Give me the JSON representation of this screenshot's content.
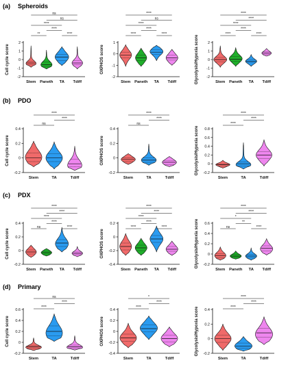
{
  "colors": {
    "Stem": "#f06a6a",
    "Paneth": "#1fae2a",
    "TA": "#2a9bf0",
    "Tdiff": "#ee86ee",
    "stroke": "#111111",
    "text": "#111111"
  },
  "sections": [
    {
      "label": "(a)",
      "title": "Spheroids"
    },
    {
      "label": "(b)",
      "title": "PDO"
    },
    {
      "label": "(c)",
      "title": "PDX"
    },
    {
      "label": "(d)",
      "title": "Primary"
    }
  ],
  "chart_data": [
    {
      "id": "a1",
      "type": "violin",
      "section": 0,
      "ylabel": "Cell cycle score",
      "ylim": [
        -2,
        2
      ],
      "yticks": [
        -2,
        -1,
        0,
        1,
        2
      ],
      "categories": [
        "Stem",
        "Paneth",
        "TA",
        "Tdiff"
      ],
      "series": [
        {
          "name": "Stem",
          "median": -0.4,
          "q1": -0.6,
          "q3": -0.2,
          "min": -0.9,
          "max": 1.6,
          "mode": -0.45,
          "spread": 0.25
        },
        {
          "name": "Paneth",
          "median": -0.6,
          "q1": -0.8,
          "q3": -0.3,
          "min": -1.1,
          "max": 1.1,
          "mode": -0.6,
          "spread": 0.35
        },
        {
          "name": "TA",
          "median": 0.3,
          "q1": -0.1,
          "q3": 0.6,
          "min": -0.7,
          "max": 1.5,
          "mode": 0.3,
          "spread": 0.55
        },
        {
          "name": "Tdiff",
          "median": -0.4,
          "q1": -0.6,
          "q3": -0.1,
          "min": -1.1,
          "max": 1.5,
          "mode": -0.4,
          "spread": 0.3
        }
      ],
      "sig": [
        {
          "from": 0,
          "to": 1,
          "text": "**",
          "level": 0
        },
        {
          "from": 1,
          "to": 2,
          "text": "****",
          "level": 1
        },
        {
          "from": 2,
          "to": 3,
          "text": "****",
          "level": 0
        },
        {
          "from": 0,
          "to": 2,
          "text": "****",
          "level": 2
        },
        {
          "from": 1,
          "to": 3,
          "text": "ns",
          "level": 3
        },
        {
          "from": 0,
          "to": 3,
          "text": "ns",
          "level": 4
        }
      ]
    },
    {
      "id": "a2",
      "type": "violin",
      "section": 0,
      "ylabel": "OXPHOS score",
      "ylim": [
        -2,
        1
      ],
      "yticks": [
        -2,
        -1,
        0,
        1
      ],
      "categories": [
        "Stem",
        "Paneth",
        "TA",
        "Tdiff"
      ],
      "series": [
        {
          "name": "Stem",
          "median": -0.1,
          "q1": -0.35,
          "q3": 0.15,
          "min": -1.1,
          "max": 0.8,
          "mode": -0.1,
          "spread": 0.4
        },
        {
          "name": "Paneth",
          "median": -0.35,
          "q1": -0.6,
          "q3": -0.1,
          "min": -1.1,
          "max": 0.5,
          "mode": -0.35,
          "spread": 0.35
        },
        {
          "name": "TA",
          "median": 0.15,
          "q1": -0.05,
          "q3": 0.35,
          "min": -0.6,
          "max": 0.75,
          "mode": 0.2,
          "spread": 0.5
        },
        {
          "name": "Tdiff",
          "median": -0.35,
          "q1": -0.55,
          "q3": -0.1,
          "min": -1.0,
          "max": 0.4,
          "mode": -0.35,
          "spread": 0.4
        }
      ],
      "sig": [
        {
          "from": 0,
          "to": 1,
          "text": "****",
          "level": 0
        },
        {
          "from": 1,
          "to": 2,
          "text": "****",
          "level": 1
        },
        {
          "from": 2,
          "to": 3,
          "text": "****",
          "level": 0
        },
        {
          "from": 0,
          "to": 2,
          "text": "****",
          "level": 2
        },
        {
          "from": 1,
          "to": 3,
          "text": "ns",
          "level": 3
        },
        {
          "from": 0,
          "to": 3,
          "text": "****",
          "level": 4
        }
      ]
    },
    {
      "id": "a3",
      "type": "violin",
      "section": 0,
      "ylabel": "Glycolysis/Hypoxia score",
      "ylim": [
        -2,
        2
      ],
      "yticks": [
        -2,
        -1,
        0,
        1,
        2
      ],
      "categories": [
        "Stem",
        "Paneth",
        "TA",
        "Tdiff"
      ],
      "series": [
        {
          "name": "Stem",
          "median": 0.0,
          "q1": -0.25,
          "q3": 0.25,
          "min": -0.9,
          "max": 1.6,
          "mode": 0.0,
          "spread": 0.5
        },
        {
          "name": "Paneth",
          "median": 0.05,
          "q1": -0.2,
          "q3": 0.35,
          "min": -0.8,
          "max": 1.4,
          "mode": 0.1,
          "spread": 0.5
        },
        {
          "name": "TA",
          "median": -0.2,
          "q1": -0.35,
          "q3": 0.0,
          "min": -0.8,
          "max": 0.6,
          "mode": -0.2,
          "spread": 0.35
        },
        {
          "name": "Tdiff",
          "median": 0.75,
          "q1": 0.6,
          "q3": 0.9,
          "min": 0.4,
          "max": 1.3,
          "mode": 0.75,
          "spread": 0.2
        }
      ],
      "sig": [
        {
          "from": 0,
          "to": 1,
          "text": "****",
          "level": 0
        },
        {
          "from": 1,
          "to": 2,
          "text": "****",
          "level": 1
        },
        {
          "from": 2,
          "to": 3,
          "text": "****",
          "level": 0
        },
        {
          "from": 0,
          "to": 2,
          "text": "****",
          "level": 2
        },
        {
          "from": 1,
          "to": 3,
          "text": "****",
          "level": 3
        },
        {
          "from": 0,
          "to": 3,
          "text": "****",
          "level": 4
        }
      ]
    },
    {
      "id": "b1",
      "type": "violin",
      "section": 1,
      "ylabel": "Cell cycle score",
      "ylim": [
        -0.2,
        0.4
      ],
      "yticks": [
        -0.2,
        0.0,
        0.2,
        0.4
      ],
      "categories": [
        "Stem",
        "TA",
        "Tdiff"
      ],
      "series": [
        {
          "name": "Stem",
          "median": 0.0,
          "q1": -0.05,
          "q3": 0.07,
          "min": -0.12,
          "max": 0.23,
          "mode": 0.01,
          "spread": 0.45
        },
        {
          "name": "TA",
          "median": 0.0,
          "q1": -0.05,
          "q3": 0.06,
          "min": -0.15,
          "max": 0.22,
          "mode": 0.0,
          "spread": 0.45
        },
        {
          "name": "Tdiff",
          "median": -0.08,
          "q1": -0.12,
          "q3": -0.02,
          "min": -0.17,
          "max": 0.16,
          "mode": -0.1,
          "spread": 0.3
        }
      ],
      "sig": [
        {
          "from": 0,
          "to": 1,
          "text": "ns",
          "level": 0
        },
        {
          "from": 1,
          "to": 2,
          "text": "****",
          "level": 1
        },
        {
          "from": 0,
          "to": 2,
          "text": "****",
          "level": 2
        }
      ]
    },
    {
      "id": "b2",
      "type": "violin",
      "section": 1,
      "ylabel": "OXPHOS score",
      "ylim": [
        -0.2,
        0.4
      ],
      "yticks": [
        -0.2,
        0.0,
        0.2,
        0.4
      ],
      "categories": [
        "Stem",
        "TA",
        "Tdiff"
      ],
      "series": [
        {
          "name": "Stem",
          "median": -0.02,
          "q1": -0.05,
          "q3": 0.0,
          "min": -0.09,
          "max": 0.06,
          "mode": -0.02,
          "spread": 0.3
        },
        {
          "name": "TA",
          "median": -0.03,
          "q1": -0.06,
          "q3": 0.0,
          "min": -0.1,
          "max": 0.19,
          "mode": -0.03,
          "spread": 0.35
        },
        {
          "name": "Tdiff",
          "median": -0.06,
          "q1": -0.09,
          "q3": -0.04,
          "min": -0.12,
          "max": 0.02,
          "mode": -0.06,
          "spread": 0.3
        }
      ],
      "sig": [
        {
          "from": 0,
          "to": 1,
          "text": "ns",
          "level": 0
        },
        {
          "from": 1,
          "to": 2,
          "text": "****",
          "level": 1
        },
        {
          "from": 0,
          "to": 2,
          "text": "****",
          "level": 2
        }
      ]
    },
    {
      "id": "b3",
      "type": "violin",
      "section": 1,
      "ylabel": "Glycolysis/Hypoxia score",
      "ylim": [
        -0.2,
        0.8
      ],
      "yticks": [
        -0.2,
        0.0,
        0.2,
        0.4,
        0.6,
        0.8
      ],
      "categories": [
        "Stem",
        "TA",
        "Tdiff"
      ],
      "series": [
        {
          "name": "Stem",
          "median": -0.02,
          "q1": -0.05,
          "q3": 0.0,
          "min": -0.1,
          "max": 0.08,
          "mode": -0.02,
          "spread": 0.3
        },
        {
          "name": "TA",
          "median": 0.0,
          "q1": -0.05,
          "q3": 0.04,
          "min": -0.12,
          "max": 0.48,
          "mode": -0.02,
          "spread": 0.35
        },
        {
          "name": "Tdiff",
          "median": 0.2,
          "q1": 0.12,
          "q3": 0.28,
          "min": -0.05,
          "max": 0.55,
          "mode": 0.2,
          "spread": 0.4
        }
      ],
      "sig": [
        {
          "from": 0,
          "to": 1,
          "text": "****",
          "level": 0
        },
        {
          "from": 1,
          "to": 2,
          "text": "****",
          "level": 1
        },
        {
          "from": 0,
          "to": 2,
          "text": "****",
          "level": 2
        }
      ]
    },
    {
      "id": "c1",
      "type": "violin",
      "section": 2,
      "ylabel": "Cell cycle score",
      "ylim": [
        -0.2,
        0.4
      ],
      "yticks": [
        -0.2,
        0.0,
        0.2,
        0.4
      ],
      "categories": [
        "Stem",
        "Paneth",
        "TA",
        "Tdiff"
      ],
      "series": [
        {
          "name": "Stem",
          "median": -0.02,
          "q1": -0.05,
          "q3": 0.01,
          "min": -0.1,
          "max": 0.08,
          "mode": -0.02,
          "spread": 0.3
        },
        {
          "name": "Paneth",
          "median": -0.03,
          "q1": -0.05,
          "q3": -0.01,
          "min": -0.08,
          "max": 0.03,
          "mode": -0.03,
          "spread": 0.3
        },
        {
          "name": "TA",
          "median": 0.11,
          "q1": 0.06,
          "q3": 0.16,
          "min": -0.02,
          "max": 0.34,
          "mode": 0.1,
          "spread": 0.5
        },
        {
          "name": "Tdiff",
          "median": -0.04,
          "q1": -0.06,
          "q3": -0.02,
          "min": -0.09,
          "max": 0.06,
          "mode": -0.04,
          "spread": 0.3
        }
      ],
      "sig": [
        {
          "from": 0,
          "to": 1,
          "text": "ns",
          "level": 0
        },
        {
          "from": 1,
          "to": 2,
          "text": "****",
          "level": 1
        },
        {
          "from": 2,
          "to": 3,
          "text": "****",
          "level": 0
        },
        {
          "from": 0,
          "to": 2,
          "text": "****",
          "level": 2
        },
        {
          "from": 1,
          "to": 3,
          "text": "****",
          "level": 3
        },
        {
          "from": 0,
          "to": 3,
          "text": "****",
          "level": 4
        }
      ]
    },
    {
      "id": "c2",
      "type": "violin",
      "section": 2,
      "ylabel": "OXPHOS score",
      "ylim": [
        -0.4,
        0.2
      ],
      "yticks": [
        -0.4,
        -0.2,
        0.0,
        0.2
      ],
      "categories": [
        "Stem",
        "Paneth",
        "TA",
        "Tdiff"
      ],
      "series": [
        {
          "name": "Stem",
          "median": -0.14,
          "q1": -0.19,
          "q3": -0.09,
          "min": -0.27,
          "max": 0.05,
          "mode": -0.14,
          "spread": 0.4
        },
        {
          "name": "Paneth",
          "median": -0.16,
          "q1": -0.2,
          "q3": -0.12,
          "min": -0.27,
          "max": -0.02,
          "mode": -0.16,
          "spread": 0.4
        },
        {
          "name": "TA",
          "median": -0.03,
          "q1": -0.08,
          "q3": 0.02,
          "min": -0.22,
          "max": 0.16,
          "mode": -0.03,
          "spread": 0.5
        },
        {
          "name": "Tdiff",
          "median": -0.18,
          "q1": -0.21,
          "q3": -0.14,
          "min": -0.27,
          "max": -0.06,
          "mode": -0.18,
          "spread": 0.4
        }
      ],
      "sig": [
        {
          "from": 0,
          "to": 1,
          "text": "****",
          "level": 0
        },
        {
          "from": 1,
          "to": 2,
          "text": "****",
          "level": 1
        },
        {
          "from": 2,
          "to": 3,
          "text": "****",
          "level": 0
        },
        {
          "from": 0,
          "to": 2,
          "text": "****",
          "level": 2
        },
        {
          "from": 1,
          "to": 3,
          "text": "****",
          "level": 3
        },
        {
          "from": 0,
          "to": 3,
          "text": "****",
          "level": 4
        }
      ]
    },
    {
      "id": "c3",
      "type": "violin",
      "section": 2,
      "ylabel": "Glycolysis/Hypoxia score",
      "ylim": [
        -0.2,
        0.6
      ],
      "yticks": [
        -0.2,
        0.0,
        0.2,
        0.4,
        0.6
      ],
      "categories": [
        "Stem",
        "Paneth",
        "TA",
        "Tdiff"
      ],
      "series": [
        {
          "name": "Stem",
          "median": -0.03,
          "q1": -0.07,
          "q3": 0.01,
          "min": -0.12,
          "max": 0.14,
          "mode": -0.03,
          "spread": 0.35
        },
        {
          "name": "Paneth",
          "median": -0.04,
          "q1": -0.06,
          "q3": -0.01,
          "min": -0.1,
          "max": 0.06,
          "mode": -0.04,
          "spread": 0.35
        },
        {
          "name": "TA",
          "median": -0.04,
          "q1": -0.07,
          "q3": -0.01,
          "min": -0.12,
          "max": 0.12,
          "mode": -0.04,
          "spread": 0.35
        },
        {
          "name": "Tdiff",
          "median": 0.11,
          "q1": 0.06,
          "q3": 0.16,
          "min": -0.02,
          "max": 0.3,
          "mode": 0.1,
          "spread": 0.45
        }
      ],
      "sig": [
        {
          "from": 0,
          "to": 1,
          "text": "ns",
          "level": 0
        },
        {
          "from": 1,
          "to": 2,
          "text": "**",
          "level": 1
        },
        {
          "from": 2,
          "to": 3,
          "text": "****",
          "level": 0
        },
        {
          "from": 0,
          "to": 2,
          "text": "*",
          "level": 2
        },
        {
          "from": 1,
          "to": 3,
          "text": "****",
          "level": 3
        },
        {
          "from": 0,
          "to": 3,
          "text": "****",
          "level": 4
        }
      ]
    },
    {
      "id": "d1",
      "type": "violin",
      "section": 3,
      "ylabel": "Cell cycle score",
      "ylim": [
        -0.2,
        0.6
      ],
      "yticks": [
        -0.2,
        0.0,
        0.2,
        0.4,
        0.6
      ],
      "categories": [
        "Stem",
        "TA",
        "Tdiff"
      ],
      "series": [
        {
          "name": "Stem",
          "median": -0.08,
          "q1": -0.11,
          "q3": -0.06,
          "min": -0.15,
          "max": 0.08,
          "mode": -0.09,
          "spread": 0.4
        },
        {
          "name": "TA",
          "median": 0.2,
          "q1": 0.12,
          "q3": 0.3,
          "min": 0.02,
          "max": 0.52,
          "mode": 0.17,
          "spread": 0.45
        },
        {
          "name": "Tdiff",
          "median": -0.08,
          "q1": -0.11,
          "q3": -0.05,
          "min": -0.14,
          "max": 0.12,
          "mode": -0.09,
          "spread": 0.4
        }
      ],
      "sig": [
        {
          "from": 0,
          "to": 1,
          "text": "****",
          "level": 0
        },
        {
          "from": 1,
          "to": 2,
          "text": "****",
          "level": 1
        },
        {
          "from": 0,
          "to": 2,
          "text": "ns",
          "level": 2
        }
      ]
    },
    {
      "id": "d2",
      "type": "violin",
      "section": 3,
      "ylabel": "OXPHOS score",
      "ylim": [
        -0.4,
        0.4
      ],
      "yticks": [
        -0.4,
        -0.2,
        0.0,
        0.2,
        0.4
      ],
      "categories": [
        "Stem",
        "TA",
        "Tdiff"
      ],
      "series": [
        {
          "name": "Stem",
          "median": -0.12,
          "q1": -0.18,
          "q3": -0.05,
          "min": -0.3,
          "max": 0.15,
          "mode": -0.12,
          "spread": 0.45
        },
        {
          "name": "TA",
          "median": 0.05,
          "q1": -0.01,
          "q3": 0.12,
          "min": -0.15,
          "max": 0.28,
          "mode": 0.06,
          "spread": 0.5
        },
        {
          "name": "Tdiff",
          "median": -0.13,
          "q1": -0.19,
          "q3": -0.07,
          "min": -0.28,
          "max": 0.08,
          "mode": -0.13,
          "spread": 0.45
        }
      ],
      "sig": [
        {
          "from": 0,
          "to": 1,
          "text": "****",
          "level": 0
        },
        {
          "from": 1,
          "to": 2,
          "text": "****",
          "level": 1
        },
        {
          "from": 0,
          "to": 2,
          "text": "*",
          "level": 2
        }
      ]
    },
    {
      "id": "d3",
      "type": "violin",
      "section": 3,
      "ylabel": "Glycolysis/Hypoxia score",
      "ylim": [
        -0.2,
        0.4
      ],
      "yticks": [
        -0.2,
        0.0,
        0.2,
        0.4
      ],
      "categories": [
        "Stem",
        "TA",
        "Tdiff"
      ],
      "series": [
        {
          "name": "Stem",
          "median": 0.0,
          "q1": -0.05,
          "q3": 0.05,
          "min": -0.16,
          "max": 0.2,
          "mode": 0.0,
          "spread": 0.45
        },
        {
          "name": "TA",
          "median": -0.1,
          "q1": -0.13,
          "q3": -0.06,
          "min": -0.17,
          "max": 0.03,
          "mode": -0.1,
          "spread": 0.5
        },
        {
          "name": "Tdiff",
          "median": 0.08,
          "q1": 0.02,
          "q3": 0.14,
          "min": -0.08,
          "max": 0.3,
          "mode": 0.06,
          "spread": 0.5
        }
      ],
      "sig": [
        {
          "from": 0,
          "to": 1,
          "text": "****",
          "level": 0
        },
        {
          "from": 1,
          "to": 2,
          "text": "****",
          "level": 1
        },
        {
          "from": 0,
          "to": 2,
          "text": "****",
          "level": 2
        }
      ]
    }
  ]
}
